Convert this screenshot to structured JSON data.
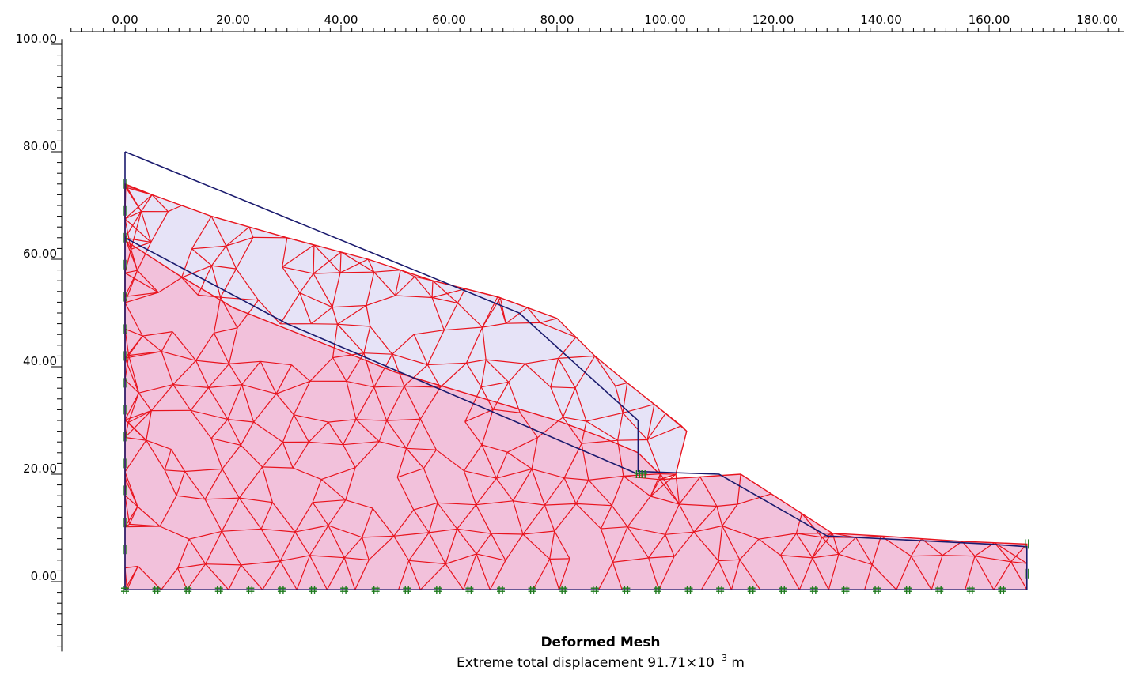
{
  "x_axis": {
    "tick_labels": [
      "0.00",
      "20.00",
      "40.00",
      "60.00",
      "80.00",
      "100.00",
      "120.00",
      "140.00",
      "160.00",
      "180.00"
    ],
    "range": [
      -10,
      185
    ],
    "major": 20,
    "minor": 2
  },
  "y_axis": {
    "tick_labels": [
      "100.00",
      "80.00",
      "60.00",
      "40.00",
      "20.00",
      "0.00"
    ],
    "range": [
      -13,
      101
    ],
    "major": 20,
    "minor": 2
  },
  "caption": {
    "title": "Deformed Mesh",
    "subtitle_prefix": "Extreme total displacement 91.71×10",
    "subtitle_exp": "−3",
    "subtitle_unit": " m"
  },
  "colors": {
    "mesh_lines": "#e8141e",
    "upper_fill": "#e6e3f7",
    "lower_fill": "#f2c1db",
    "undeformed_outline": "#1a1a6e",
    "fixities": "#1e7a1e",
    "axis": "#000000"
  },
  "geometry": {
    "undeformed_outline": [
      [
        0,
        80
      ],
      [
        0,
        -1.5
      ],
      [
        167,
        -1.5
      ],
      [
        167,
        6.5
      ],
      [
        160,
        7
      ],
      [
        130,
        8.5
      ],
      [
        110,
        20
      ],
      [
        95,
        20.5
      ],
      [
        95,
        30
      ],
      [
        73,
        50
      ],
      [
        0,
        80
      ]
    ],
    "undeformed_inner_line": [
      [
        0,
        64
      ],
      [
        30,
        48
      ],
      [
        95,
        20
      ]
    ],
    "deformed_surface": [
      [
        0,
        74
      ],
      [
        5,
        72
      ],
      [
        16,
        68
      ],
      [
        30,
        64
      ],
      [
        45,
        60
      ],
      [
        57,
        56
      ],
      [
        69,
        53
      ],
      [
        80,
        49
      ],
      [
        87,
        42
      ],
      [
        93,
        37
      ],
      [
        98,
        33
      ],
      [
        103,
        29
      ],
      [
        104,
        28
      ],
      [
        102,
        20
      ],
      [
        99,
        19
      ],
      [
        114,
        20
      ],
      [
        131,
        9
      ],
      [
        140,
        8.5
      ],
      [
        155,
        7.5
      ],
      [
        167,
        7
      ],
      [
        167,
        -1.5
      ],
      [
        0,
        -1.5
      ]
    ],
    "deformed_interface": [
      [
        0,
        63.5
      ],
      [
        10,
        57
      ],
      [
        20,
        51
      ],
      [
        30,
        47
      ],
      [
        40,
        43
      ],
      [
        50,
        39
      ],
      [
        60,
        36
      ],
      [
        70,
        33
      ],
      [
        80,
        30
      ],
      [
        88,
        27
      ],
      [
        95,
        24
      ],
      [
        99,
        20
      ]
    ]
  }
}
